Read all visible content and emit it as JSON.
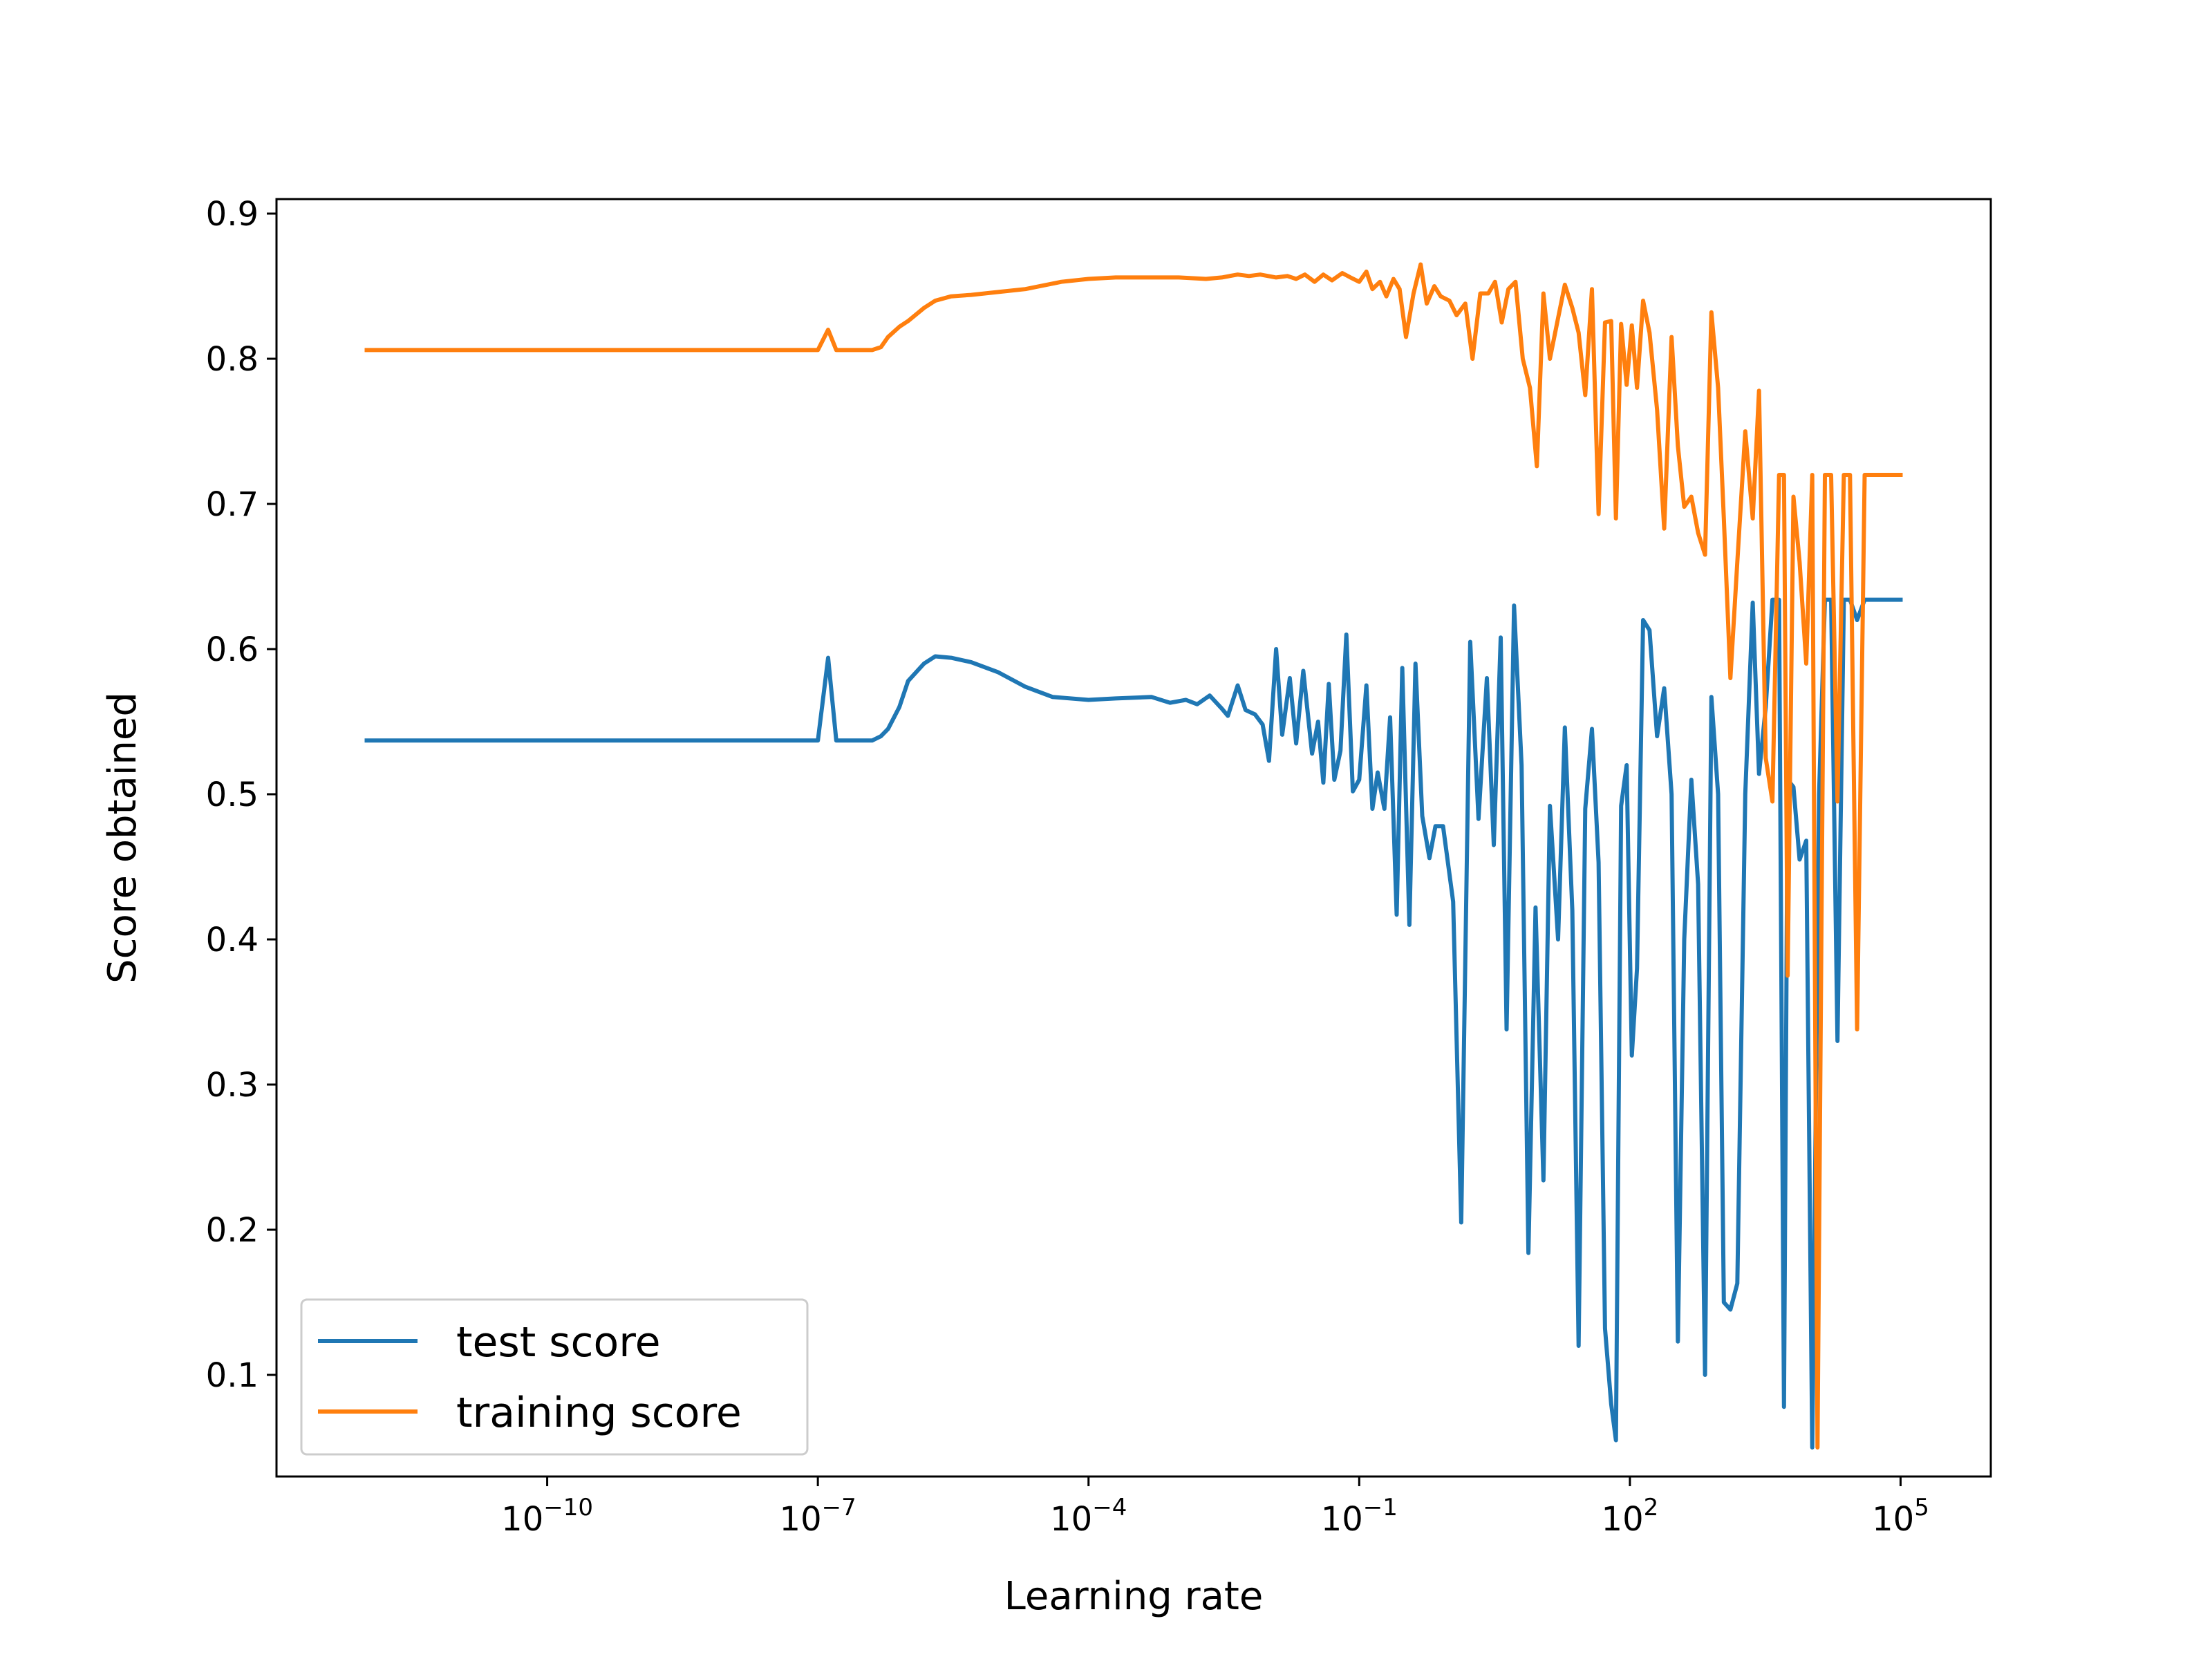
{
  "chart_data": {
    "type": "line",
    "title": "",
    "xlabel": "Learning rate",
    "ylabel": "Score obtained",
    "xscale": "log",
    "xlim": [
      1e-13,
      1000000.0
    ],
    "ylim": [
      0.03,
      0.91
    ],
    "xticks": [
      {
        "value": 1e-10,
        "base": "10",
        "exp": "−10"
      },
      {
        "value": 1e-07,
        "base": "10",
        "exp": "−7"
      },
      {
        "value": 0.0001,
        "base": "10",
        "exp": "−4"
      },
      {
        "value": 0.1,
        "base": "10",
        "exp": "−1"
      },
      {
        "value": 100,
        "base": "10",
        "exp": "2"
      },
      {
        "value": 100000,
        "base": "10",
        "exp": "5"
      }
    ],
    "yticks": [
      {
        "value": 0.1,
        "label": "0.1"
      },
      {
        "value": 0.2,
        "label": "0.2"
      },
      {
        "value": 0.3,
        "label": "0.3"
      },
      {
        "value": 0.4,
        "label": "0.4"
      },
      {
        "value": 0.5,
        "label": "0.5"
      },
      {
        "value": 0.6,
        "label": "0.6"
      },
      {
        "value": 0.7,
        "label": "0.7"
      },
      {
        "value": 0.8,
        "label": "0.8"
      },
      {
        "value": 0.9,
        "label": "0.9"
      }
    ],
    "grid": false,
    "legend_position": "lower-left",
    "series": [
      {
        "name": "test score",
        "color": "#1f77b4",
        "points": [
          [
            1e-12,
            0.537
          ],
          [
            1e-07,
            0.537
          ],
          [
            1.3e-07,
            0.594
          ],
          [
            1.6e-07,
            0.537
          ],
          [
            4e-07,
            0.537
          ],
          [
            5e-07,
            0.54
          ],
          [
            6e-07,
            0.545
          ],
          [
            8e-07,
            0.56
          ],
          [
            1e-06,
            0.578
          ],
          [
            1.5e-06,
            0.59
          ],
          [
            2e-06,
            0.595
          ],
          [
            3e-06,
            0.594
          ],
          [
            5e-06,
            0.591
          ],
          [
            1e-05,
            0.584
          ],
          [
            2e-05,
            0.574
          ],
          [
            4e-05,
            0.567
          ],
          [
            0.0001,
            0.565
          ],
          [
            0.0002,
            0.566
          ],
          [
            0.0005,
            0.567
          ],
          [
            0.0008,
            0.563
          ],
          [
            0.0012,
            0.565
          ],
          [
            0.0016,
            0.562
          ],
          [
            0.0022,
            0.568
          ],
          [
            0.003,
            0.559
          ],
          [
            0.0035,
            0.554
          ],
          [
            0.0045,
            0.575
          ],
          [
            0.0055,
            0.558
          ],
          [
            0.007,
            0.555
          ],
          [
            0.0085,
            0.548
          ],
          [
            0.01,
            0.523
          ],
          [
            0.012,
            0.6
          ],
          [
            0.014,
            0.541
          ],
          [
            0.017,
            0.58
          ],
          [
            0.02,
            0.535
          ],
          [
            0.024,
            0.585
          ],
          [
            0.03,
            0.528
          ],
          [
            0.035,
            0.55
          ],
          [
            0.04,
            0.508
          ],
          [
            0.046,
            0.576
          ],
          [
            0.053,
            0.51
          ],
          [
            0.062,
            0.53
          ],
          [
            0.072,
            0.61
          ],
          [
            0.085,
            0.502
          ],
          [
            0.1,
            0.51
          ],
          [
            0.12,
            0.575
          ],
          [
            0.14,
            0.49
          ],
          [
            0.16,
            0.515
          ],
          [
            0.19,
            0.49
          ],
          [
            0.22,
            0.553
          ],
          [
            0.26,
            0.417
          ],
          [
            0.3,
            0.587
          ],
          [
            0.36,
            0.41
          ],
          [
            0.42,
            0.59
          ],
          [
            0.5,
            0.485
          ],
          [
            0.6,
            0.456
          ],
          [
            0.7,
            0.478
          ],
          [
            0.85,
            0.478
          ],
          [
            1.1,
            0.426
          ],
          [
            1.35,
            0.205
          ],
          [
            1.7,
            0.605
          ],
          [
            2.1,
            0.483
          ],
          [
            2.6,
            0.58
          ],
          [
            3.1,
            0.465
          ],
          [
            3.7,
            0.608
          ],
          [
            4.3,
            0.338
          ],
          [
            5.2,
            0.63
          ],
          [
            6.3,
            0.52
          ],
          [
            7.5,
            0.184
          ],
          [
            9,
            0.422
          ],
          [
            11,
            0.234
          ],
          [
            13,
            0.492
          ],
          [
            16,
            0.4
          ],
          [
            19,
            0.546
          ],
          [
            23,
            0.42
          ],
          [
            27,
            0.12
          ],
          [
            32,
            0.49
          ],
          [
            38,
            0.545
          ],
          [
            45,
            0.453
          ],
          [
            53,
            0.132
          ],
          [
            62,
            0.08
          ],
          [
            70,
            0.055
          ],
          [
            80,
            0.492
          ],
          [
            92,
            0.52
          ],
          [
            105,
            0.32
          ],
          [
            120,
            0.38
          ],
          [
            140,
            0.62
          ],
          [
            165,
            0.613
          ],
          [
            200,
            0.54
          ],
          [
            240,
            0.573
          ],
          [
            290,
            0.5
          ],
          [
            340,
            0.123
          ],
          [
            400,
            0.4
          ],
          [
            480,
            0.51
          ],
          [
            570,
            0.438
          ],
          [
            680,
            0.1
          ],
          [
            800,
            0.567
          ],
          [
            950,
            0.5
          ],
          [
            1100,
            0.15
          ],
          [
            1300,
            0.145
          ],
          [
            1550,
            0.163
          ],
          [
            1900,
            0.5
          ],
          [
            2300,
            0.632
          ],
          [
            2700,
            0.514
          ],
          [
            3200,
            0.56
          ],
          [
            3800,
            0.634
          ],
          [
            4500,
            0.634
          ],
          [
            5100,
            0.078
          ],
          [
            5600,
            0.51
          ],
          [
            6500,
            0.505
          ],
          [
            7600,
            0.455
          ],
          [
            9000,
            0.468
          ],
          [
            10500,
            0.05
          ],
          [
            12500,
            0.5
          ],
          [
            14500,
            0.634
          ],
          [
            17000,
            0.634
          ],
          [
            20000,
            0.33
          ],
          [
            23500,
            0.634
          ],
          [
            27500,
            0.634
          ],
          [
            33000,
            0.62
          ],
          [
            40000,
            0.634
          ],
          [
            100000,
            0.634
          ]
        ]
      },
      {
        "name": "training score",
        "color": "#ff7f0e",
        "points": [
          [
            1e-12,
            0.806
          ],
          [
            1e-07,
            0.806
          ],
          [
            1.3e-07,
            0.82
          ],
          [
            1.6e-07,
            0.806
          ],
          [
            4e-07,
            0.806
          ],
          [
            5e-07,
            0.808
          ],
          [
            6e-07,
            0.815
          ],
          [
            8e-07,
            0.822
          ],
          [
            1e-06,
            0.826
          ],
          [
            1.5e-06,
            0.835
          ],
          [
            2e-06,
            0.84
          ],
          [
            3e-06,
            0.843
          ],
          [
            5e-06,
            0.844
          ],
          [
            1e-05,
            0.846
          ],
          [
            2e-05,
            0.848
          ],
          [
            5e-05,
            0.853
          ],
          [
            0.0001,
            0.855
          ],
          [
            0.0002,
            0.856
          ],
          [
            0.0005,
            0.856
          ],
          [
            0.001,
            0.856
          ],
          [
            0.002,
            0.855
          ],
          [
            0.003,
            0.856
          ],
          [
            0.0045,
            0.858
          ],
          [
            0.006,
            0.857
          ],
          [
            0.008,
            0.858
          ],
          [
            0.012,
            0.856
          ],
          [
            0.016,
            0.857
          ],
          [
            0.02,
            0.855
          ],
          [
            0.025,
            0.858
          ],
          [
            0.032,
            0.853
          ],
          [
            0.04,
            0.858
          ],
          [
            0.05,
            0.854
          ],
          [
            0.065,
            0.859
          ],
          [
            0.08,
            0.856
          ],
          [
            0.1,
            0.853
          ],
          [
            0.12,
            0.86
          ],
          [
            0.14,
            0.848
          ],
          [
            0.17,
            0.853
          ],
          [
            0.2,
            0.843
          ],
          [
            0.24,
            0.855
          ],
          [
            0.28,
            0.848
          ],
          [
            0.33,
            0.815
          ],
          [
            0.4,
            0.845
          ],
          [
            0.48,
            0.865
          ],
          [
            0.56,
            0.838
          ],
          [
            0.68,
            0.85
          ],
          [
            0.8,
            0.843
          ],
          [
            1,
            0.84
          ],
          [
            1.2,
            0.83
          ],
          [
            1.5,
            0.838
          ],
          [
            1.8,
            0.8
          ],
          [
            2.2,
            0.845
          ],
          [
            2.7,
            0.845
          ],
          [
            3.2,
            0.853
          ],
          [
            3.8,
            0.825
          ],
          [
            4.5,
            0.848
          ],
          [
            5.4,
            0.853
          ],
          [
            6.5,
            0.8
          ],
          [
            7.8,
            0.78
          ],
          [
            9.3,
            0.726
          ],
          [
            11,
            0.845
          ],
          [
            13,
            0.8
          ],
          [
            16,
            0.828
          ],
          [
            19,
            0.851
          ],
          [
            23,
            0.835
          ],
          [
            27,
            0.818
          ],
          [
            32,
            0.775
          ],
          [
            38,
            0.848
          ],
          [
            45,
            0.693
          ],
          [
            53,
            0.825
          ],
          [
            62,
            0.826
          ],
          [
            70,
            0.69
          ],
          [
            80,
            0.824
          ],
          [
            92,
            0.782
          ],
          [
            105,
            0.823
          ],
          [
            120,
            0.78
          ],
          [
            140,
            0.84
          ],
          [
            165,
            0.818
          ],
          [
            200,
            0.765
          ],
          [
            240,
            0.683
          ],
          [
            290,
            0.815
          ],
          [
            340,
            0.74
          ],
          [
            400,
            0.698
          ],
          [
            480,
            0.705
          ],
          [
            570,
            0.68
          ],
          [
            680,
            0.665
          ],
          [
            800,
            0.832
          ],
          [
            950,
            0.78
          ],
          [
            1100,
            0.69
          ],
          [
            1300,
            0.58
          ],
          [
            1550,
            0.66
          ],
          [
            1900,
            0.75
          ],
          [
            2300,
            0.69
          ],
          [
            2700,
            0.778
          ],
          [
            3200,
            0.525
          ],
          [
            3800,
            0.495
          ],
          [
            4500,
            0.72
          ],
          [
            5100,
            0.72
          ],
          [
            5600,
            0.375
          ],
          [
            6500,
            0.705
          ],
          [
            7600,
            0.66
          ],
          [
            9000,
            0.59
          ],
          [
            10500,
            0.72
          ],
          [
            12000,
            0.05
          ],
          [
            14500,
            0.72
          ],
          [
            17000,
            0.72
          ],
          [
            20000,
            0.495
          ],
          [
            23500,
            0.72
          ],
          [
            27500,
            0.72
          ],
          [
            33000,
            0.338
          ],
          [
            40000,
            0.72
          ],
          [
            100000,
            0.72
          ]
        ]
      }
    ]
  }
}
